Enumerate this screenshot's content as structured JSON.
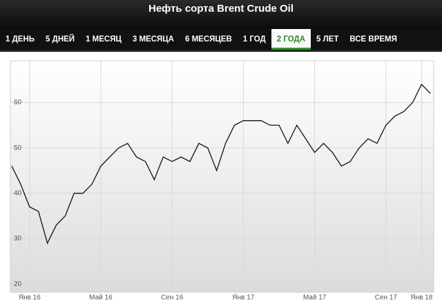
{
  "header": {
    "title": "Нефть сорта Brent Crude Oil"
  },
  "tabs": [
    "1 ДЕНЬ",
    "5 ДНЕЙ",
    "1 МЕСЯЦ",
    "3 МЕСЯЦА",
    "6 МЕСЯЦЕВ",
    "1 ГОД",
    "2 ГОДА",
    "5 ЛЕТ",
    "ВСЕ ВРЕМЯ"
  ],
  "chart_data": {
    "type": "line",
    "categories": [
      null,
      null,
      "Янв 16",
      null,
      null,
      null,
      null,
      null,
      null,
      null,
      "Май 16",
      null,
      null,
      null,
      null,
      null,
      null,
      null,
      "Сен 16",
      null,
      null,
      null,
      null,
      null,
      null,
      null,
      "Янв 17",
      null,
      null,
      null,
      null,
      null,
      null,
      null,
      "Май 17",
      null,
      null,
      null,
      null,
      null,
      null,
      null,
      "Сен 17",
      null,
      null,
      null,
      "Янв 18",
      null
    ],
    "values": [
      46,
      42,
      37,
      36,
      29,
      33,
      35,
      40,
      40,
      42,
      46,
      48,
      50,
      51,
      48,
      47,
      43,
      48,
      47,
      48,
      47,
      51,
      50,
      45,
      51,
      55,
      56,
      56,
      56,
      55,
      55,
      51,
      55,
      52,
      49,
      51,
      49,
      46,
      47,
      50,
      52,
      51,
      55,
      57,
      58,
      60,
      64,
      62
    ],
    "color": "#111111",
    "ylim": [
      18.2,
      69.2
    ],
    "yticks": [
      20,
      30,
      40,
      50,
      60
    ],
    "grid": true
  }
}
